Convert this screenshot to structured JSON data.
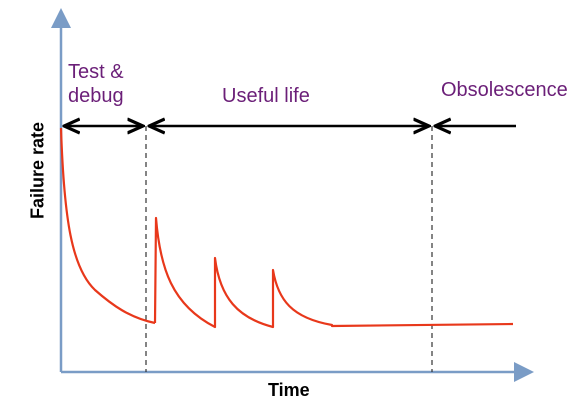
{
  "axes": {
    "x_label": "Time",
    "y_label": "Failure rate",
    "axis_color": "#7a9cc6"
  },
  "phases": [
    {
      "label": "Test &\ndebug"
    },
    {
      "label": "Useful life"
    },
    {
      "label": "Obsolescence"
    }
  ],
  "colors": {
    "phase_text": "#6b1f78",
    "curve": "#e8381b",
    "arrows": "#000000",
    "dividers": "#333333"
  }
}
